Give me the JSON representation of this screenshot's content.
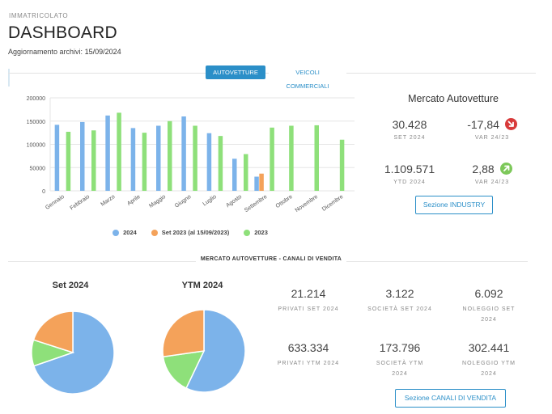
{
  "header": {
    "eyebrow": "IMMATRICOLATO",
    "title": "DASHBOARD",
    "updated_label": "Aggiornamento archivi:",
    "updated_date": "15/09/2024"
  },
  "tabs": [
    {
      "label": "AUTOVETTURE",
      "active": true
    },
    {
      "label": "VEICOLI COMMERCIALI",
      "active": false
    }
  ],
  "colors": {
    "accent": "#2b8fc8",
    "series_2024": "#7cb3ea",
    "series_set2023": "#f4a25a",
    "series_2023": "#8ee07a",
    "badge_down": "#d83a3a",
    "badge_up": "#7dc85a"
  },
  "chart_data": {
    "type": "bar",
    "categories": [
      "Gennaio",
      "Febbraio",
      "Marzo",
      "Aprile",
      "Maggio",
      "Giugno",
      "Luglio",
      "Agosto",
      "Settembre",
      "Ottobre",
      "Novembre",
      "Dicembre"
    ],
    "yticks": [
      "200000",
      "150000",
      "100000",
      "50000",
      "0"
    ],
    "ylim": [
      0,
      200000
    ],
    "series": [
      {
        "name": "2024",
        "color": "#7cb3ea",
        "values": [
          142000,
          148000,
          162000,
          135000,
          140000,
          160000,
          124000,
          69000,
          30428,
          null,
          null,
          null
        ]
      },
      {
        "name": "Set 2023 (al 15/09/2023)",
        "color": "#f4a25a",
        "values": [
          null,
          null,
          null,
          null,
          null,
          null,
          null,
          null,
          37000,
          null,
          null,
          null
        ]
      },
      {
        "name": "2023",
        "color": "#8ee07a",
        "values": [
          127000,
          130000,
          168000,
          125000,
          150000,
          140000,
          118000,
          79000,
          136000,
          140000,
          141000,
          110000
        ]
      }
    ],
    "grid": true,
    "legend_position": "bottom"
  },
  "market": {
    "title": "Mercato Autovetture",
    "kpis": [
      {
        "value": "30.428",
        "label": "SET 2024"
      },
      {
        "value": "-17,84",
        "label": "VAR 24/23",
        "trend": "down"
      },
      {
        "value": "1.109.571",
        "label": "YTD 2024"
      },
      {
        "value": "2,88",
        "label": "VAR 24/23",
        "trend": "up"
      }
    ],
    "button": "Sezione INDUSTRY"
  },
  "channels": {
    "section_title": "MERCATO AUTOVETTURE - CANALI DI VENDITA",
    "pies": [
      {
        "title": "Set 2024",
        "chart_data": {
          "type": "pie",
          "labels": [
            "Privati",
            "Società",
            "Noleggio"
          ],
          "values": [
            21214,
            3122,
            6092
          ]
        }
      },
      {
        "title": "YTM 2024",
        "chart_data": {
          "type": "pie",
          "labels": [
            "Privati",
            "Società",
            "Noleggio"
          ],
          "values": [
            633334,
            173796,
            302441
          ]
        }
      }
    ],
    "stats": [
      {
        "value": "21.214",
        "label1": "PRIVATI SET 2024",
        "label2": ""
      },
      {
        "value": "3.122",
        "label1": "SOCIETÀ SET 2024",
        "label2": ""
      },
      {
        "value": "6.092",
        "label1": "NOLEGGIO SET",
        "label2": "2024"
      },
      {
        "value": "633.334",
        "label1": "PRIVATI YTM 2024",
        "label2": ""
      },
      {
        "value": "173.796",
        "label1": "SOCIETÀ YTM",
        "label2": "2024"
      },
      {
        "value": "302.441",
        "label1": "NOLEGGIO YTM",
        "label2": "2024"
      }
    ],
    "button": "Sezione CANALI DI VENDITA"
  }
}
